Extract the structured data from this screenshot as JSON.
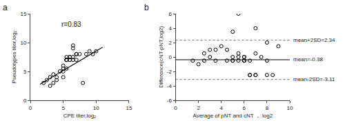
{
  "chart_data": [
    {
      "type": "scatter",
      "title": "a",
      "x_label": "CPE titer,log₂",
      "y_label": "Pseudotypes titer,log₂",
      "annotation": "r=0.83",
      "xlim": [
        0,
        15
      ],
      "ylim": [
        0,
        15
      ],
      "xticks": [
        0,
        5,
        10,
        15
      ],
      "yticks": [
        0,
        5,
        10,
        15
      ],
      "grid": false,
      "series": [
        {
          "type": "scatter",
          "marker": "circle-open",
          "color": "black",
          "x": [
            2.0,
            2.5,
            3.0,
            3.0,
            3.5,
            3.5,
            4.0,
            4.0,
            4.5,
            5.0,
            5.0,
            5.0,
            5.0,
            5.5,
            5.5,
            5.5,
            5.5,
            5.5,
            6.0,
            6.0,
            6.0,
            6.0,
            6.5,
            6.5,
            6.5,
            6.5,
            7.0,
            7.0,
            7.0,
            7.5,
            8.0,
            8.5,
            9.0,
            9.5,
            10.0
          ],
          "values": [
            3.0,
            3.5,
            2.5,
            4.0,
            3.0,
            4.5,
            4.0,
            3.5,
            5.0,
            5.0,
            5.5,
            6.0,
            4.0,
            7.0,
            7.5,
            7.0,
            5.5,
            7.0,
            7.0,
            7.5,
            7.0,
            7.5,
            9.5,
            9.0,
            7.5,
            7.0,
            8.0,
            7.0,
            8.0,
            8.0,
            3.0,
            8.0,
            8.5,
            8.0,
            8.5
          ]
        },
        {
          "type": "line",
          "line_style": "solid",
          "color": "black",
          "x": [
            1.5,
            11.0
          ],
          "values": [
            2.8,
            9.2
          ]
        }
      ]
    },
    {
      "type": "scatter",
      "title": "b",
      "x_label": "Average of pNT and cNT ， log2",
      "y_label": "Difference(cNT-pNT,log2)",
      "xlim": [
        0,
        10
      ],
      "ylim": [
        -6,
        6
      ],
      "xticks": [
        0,
        2,
        4,
        6,
        8,
        10
      ],
      "yticks": [
        -6,
        -4,
        -2,
        0,
        2,
        4,
        6
      ],
      "grid": false,
      "series": [
        {
          "type": "scatter",
          "marker": "circle-open",
          "color": "black",
          "x": [
            1.5,
            2.0,
            2.5,
            2.5,
            3.0,
            3.0,
            3.5,
            3.5,
            4.0,
            4.5,
            4.5,
            5.0,
            5.0,
            5.0,
            5.0,
            5.5,
            5.5,
            5.5,
            5.5,
            6.0,
            6.0,
            6.0,
            6.0,
            6.0,
            6.5,
            6.5,
            6.5,
            7.0,
            7.0,
            7.0,
            7.0,
            7.5,
            8.0,
            8.0,
            8.0,
            8.5,
            9.0
          ],
          "values": [
            -0.5,
            -1.0,
            0.5,
            -0.5,
            0.0,
            1.0,
            1.0,
            -0.5,
            1.5,
            1.0,
            -0.5,
            3.5,
            -0.5,
            0.0,
            -0.5,
            6.0,
            0.5,
            0.0,
            -0.5,
            -0.5,
            0.0,
            0.0,
            -0.5,
            -0.5,
            -0.5,
            -2.5,
            -2.5,
            0.5,
            -2.5,
            4.0,
            -2.5,
            0.0,
            2.0,
            -0.5,
            -2.5,
            -2.5,
            1.5
          ]
        }
      ],
      "reference_lines": [
        {
          "value": -0.38,
          "label": "mean=-0.38",
          "color": "black",
          "line_style": "solid"
        },
        {
          "value": 2.34,
          "label": "mean+2SD=2.34",
          "color": "#888888",
          "line_style": "dotted"
        },
        {
          "value": -3.11,
          "label": "mean-2SD=-3.11",
          "color": "#888888",
          "line_style": "dotted"
        }
      ]
    }
  ]
}
